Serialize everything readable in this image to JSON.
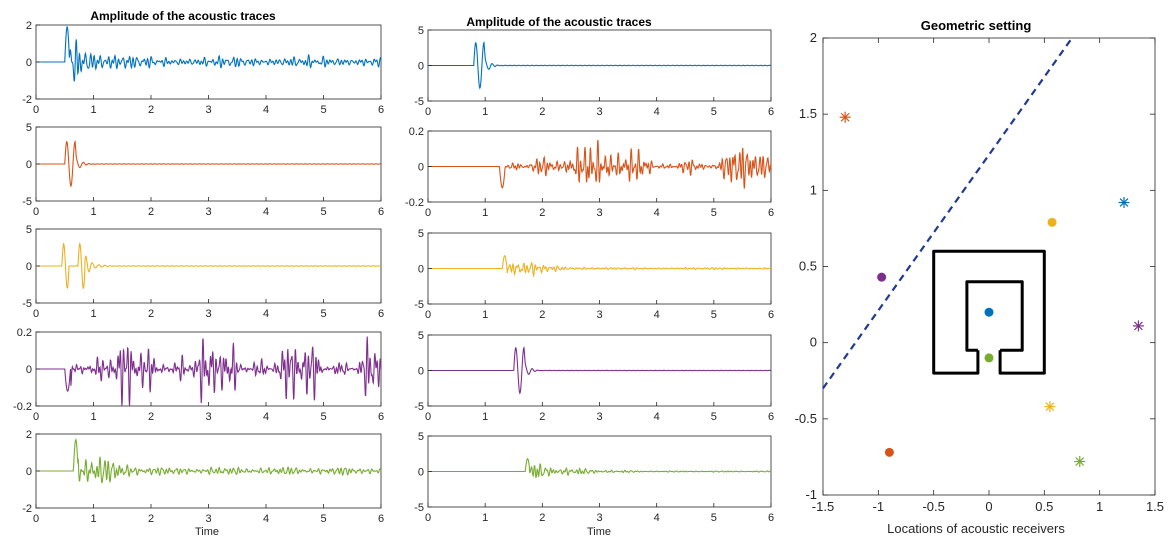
{
  "chart_data": [
    {
      "type": "line",
      "panel": "left-column",
      "title": "Amplitude of the acoustic traces",
      "xlabel": "Time",
      "xlim": [
        0,
        6
      ],
      "xticks": [
        "0",
        "1",
        "2",
        "3",
        "4",
        "5",
        "6"
      ],
      "series": [
        {
          "color": "#0072BD",
          "ylim": [
            -2,
            2
          ],
          "yticks": [
            "-2",
            "0",
            "2"
          ],
          "waveform": {
            "onset": 0.5,
            "peak": 1.9,
            "style": "reverberant",
            "end_amp": 0.2
          }
        },
        {
          "color": "#D95319",
          "ylim": [
            -5,
            5
          ],
          "yticks": [
            "-5",
            "0",
            "5"
          ],
          "waveform": {
            "onset": 0.5,
            "peak": 3.0,
            "style": "burst",
            "end_amp": 0.02
          }
        },
        {
          "color": "#EDB120",
          "ylim": [
            -5,
            5
          ],
          "yticks": [
            "-5",
            "0",
            "5"
          ],
          "waveform": {
            "onset": 0.45,
            "peak": 3.0,
            "style": "double-burst",
            "end_amp": 0.03
          }
        },
        {
          "color": "#7E2F8E",
          "ylim": [
            -0.2,
            0.2
          ],
          "yticks": [
            "-0.2",
            "0",
            "0.2"
          ],
          "waveform": {
            "onset": 0.5,
            "peak": 0.12,
            "style": "noisy",
            "end_amp": 0.1
          }
        },
        {
          "color": "#77AC30",
          "ylim": [
            -2,
            2
          ],
          "yticks": [
            "-2",
            "0",
            "2"
          ],
          "waveform": {
            "onset": 0.65,
            "peak": 1.7,
            "style": "reverberant",
            "end_amp": 0.15
          }
        }
      ]
    },
    {
      "type": "line",
      "panel": "middle-column",
      "title": "Amplitude of the acoustic traces",
      "xlabel": "Time",
      "xlim": [
        0,
        6
      ],
      "xticks": [
        "0",
        "1",
        "2",
        "3",
        "4",
        "5",
        "6"
      ],
      "series": [
        {
          "color": "#0072BD",
          "ylim": [
            -5,
            5
          ],
          "yticks": [
            "-5",
            "0",
            "5"
          ],
          "waveform": {
            "onset": 0.8,
            "peak": 3.2,
            "style": "burst",
            "end_amp": 0.03
          }
        },
        {
          "color": "#D95319",
          "ylim": [
            -0.2,
            0.2
          ],
          "yticks": [
            "-0.2",
            "0",
            "0.2"
          ],
          "waveform": {
            "onset": 1.25,
            "peak": 0.12,
            "style": "noisy",
            "end_amp": 0.07
          }
        },
        {
          "color": "#EDB120",
          "ylim": [
            -5,
            5
          ],
          "yticks": [
            "-5",
            "0",
            "5"
          ],
          "waveform": {
            "onset": 1.3,
            "peak": 1.8,
            "style": "reverberant",
            "end_amp": 0.1
          }
        },
        {
          "color": "#7E2F8E",
          "ylim": [
            -5,
            5
          ],
          "yticks": [
            "-5",
            "0",
            "5"
          ],
          "waveform": {
            "onset": 1.5,
            "peak": 3.2,
            "style": "burst",
            "end_amp": 0.02
          }
        },
        {
          "color": "#77AC30",
          "ylim": [
            -5,
            5
          ],
          "yticks": [
            "-5",
            "0",
            "5"
          ],
          "waveform": {
            "onset": 1.7,
            "peak": 1.8,
            "style": "reverberant",
            "end_amp": 0.06
          }
        }
      ]
    },
    {
      "type": "scatter",
      "panel": "right",
      "title": "Geometric setting",
      "xlabel": "Locations of acoustic receivers",
      "xlim": [
        -1.5,
        1.5
      ],
      "ylim": [
        -1,
        2
      ],
      "xticks": [
        "-1.5",
        "-1",
        "-0.5",
        "0",
        "0.5",
        "1",
        "1.5"
      ],
      "yticks": [
        "-1",
        "-0.5",
        "0",
        "0.5",
        "1",
        "1.5",
        "2"
      ],
      "points": [
        {
          "x": -1.3,
          "y": 1.48,
          "marker": "star",
          "color": "#D95319"
        },
        {
          "x": 1.22,
          "y": 0.92,
          "marker": "star",
          "color": "#0072BD"
        },
        {
          "x": 1.35,
          "y": 0.11,
          "marker": "star",
          "color": "#7E2F8E"
        },
        {
          "x": 0.55,
          "y": -0.42,
          "marker": "star",
          "color": "#EDB120"
        },
        {
          "x": 0.82,
          "y": -0.78,
          "marker": "star",
          "color": "#77AC30"
        },
        {
          "x": 0.57,
          "y": 0.79,
          "marker": "dot",
          "color": "#EDB120"
        },
        {
          "x": -0.97,
          "y": 0.43,
          "marker": "dot",
          "color": "#7E2F8E"
        },
        {
          "x": 0.0,
          "y": 0.2,
          "marker": "dot",
          "color": "#0072BD"
        },
        {
          "x": 0.0,
          "y": -0.1,
          "marker": "dot",
          "color": "#77AC30"
        },
        {
          "x": -0.9,
          "y": -0.72,
          "marker": "dot",
          "color": "#D95319"
        }
      ],
      "dashed_line": {
        "from": [
          -1.5,
          -0.3
        ],
        "to": [
          0.75,
          2.0
        ],
        "color": "#1F3A93"
      },
      "obstacle": {
        "color": "#000000",
        "outer": [
          [
            -0.1,
            -0.05
          ],
          [
            -0.1,
            -0.2
          ],
          [
            -0.5,
            -0.2
          ],
          [
            -0.5,
            0.6
          ],
          [
            0.5,
            0.6
          ],
          [
            0.5,
            -0.2
          ],
          [
            0.1,
            -0.2
          ],
          [
            0.1,
            -0.05
          ]
        ],
        "inner": [
          [
            -0.1,
            -0.05
          ],
          [
            -0.2,
            -0.05
          ],
          [
            -0.2,
            0.4
          ],
          [
            0.3,
            0.4
          ],
          [
            0.3,
            -0.05
          ],
          [
            0.1,
            -0.05
          ]
        ]
      }
    }
  ]
}
